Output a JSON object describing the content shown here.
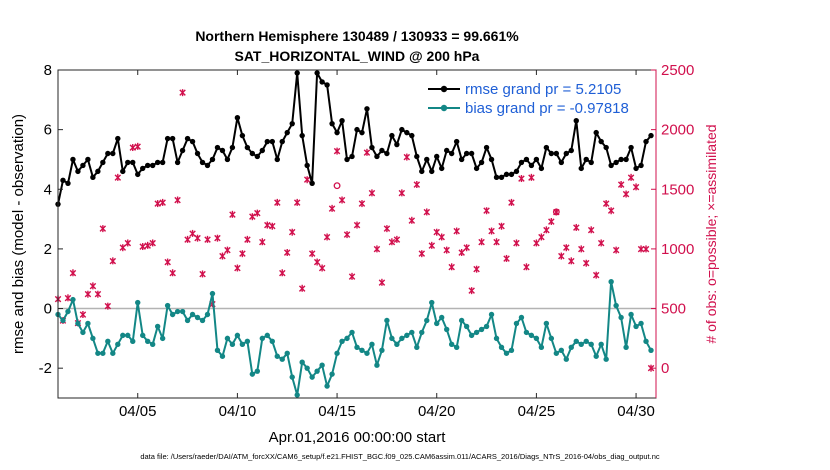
{
  "chart_data": {
    "type": "line",
    "title": "Northern Hemisphere 130489 / 130933 = 99.661%",
    "subtitle": "SAT_HORIZONTAL_WIND @ 200 hPa",
    "xlabel": "Apr.01,2016 00:00:00 start",
    "ylabel": "rmse and bias (model - observation)",
    "y2label": "# of obs: o=possible; ×=assimilated",
    "xlim": [
      1,
      31
    ],
    "ylim": [
      -3,
      8
    ],
    "y2lim": [
      -250,
      2500
    ],
    "xticks": [
      {
        "value": 5,
        "label": "04/05"
      },
      {
        "value": 10,
        "label": "04/10"
      },
      {
        "value": 15,
        "label": "04/15"
      },
      {
        "value": 20,
        "label": "04/20"
      },
      {
        "value": 25,
        "label": "04/25"
      },
      {
        "value": 30,
        "label": "04/30"
      }
    ],
    "yticks": [
      -2,
      0,
      2,
      4,
      6,
      8
    ],
    "y2ticks": [
      0,
      500,
      1000,
      1500,
      2000,
      2500
    ],
    "zero_line": 0,
    "legend_position": "top-right",
    "colors": {
      "rmse": "#000000",
      "bias": "#138786",
      "obs": "#d1104d",
      "zero": "#b3b3b3"
    },
    "series": [
      {
        "name": "rmse grand pr = 5.2105",
        "axis": "left",
        "x": [
          1.0,
          1.25,
          1.5,
          1.75,
          2.0,
          2.25,
          2.5,
          2.75,
          3.0,
          3.25,
          3.5,
          3.75,
          4.0,
          4.25,
          4.5,
          4.75,
          5.0,
          5.25,
          5.5,
          5.75,
          6.0,
          6.25,
          6.5,
          6.75,
          7.0,
          7.25,
          7.5,
          7.75,
          8.0,
          8.25,
          8.5,
          8.75,
          9.0,
          9.25,
          9.5,
          9.75,
          10.0,
          10.25,
          10.5,
          10.75,
          11.0,
          11.25,
          11.5,
          11.75,
          12.0,
          12.25,
          12.5,
          12.75,
          13.0,
          13.25,
          13.5,
          13.75,
          14.0,
          14.25,
          14.5,
          14.75,
          15.0,
          15.25,
          15.5,
          15.75,
          16.0,
          16.25,
          16.5,
          16.75,
          17.0,
          17.25,
          17.5,
          17.75,
          18.0,
          18.25,
          18.5,
          18.75,
          19.0,
          19.25,
          19.5,
          19.75,
          20.0,
          20.25,
          20.5,
          20.75,
          21.0,
          21.25,
          21.5,
          21.75,
          22.0,
          22.25,
          22.5,
          22.75,
          23.0,
          23.25,
          23.5,
          23.75,
          24.0,
          24.25,
          24.5,
          24.75,
          25.0,
          25.25,
          25.5,
          25.75,
          26.0,
          26.25,
          26.5,
          26.75,
          27.0,
          27.25,
          27.5,
          27.75,
          28.0,
          28.25,
          28.5,
          28.75,
          29.0,
          29.25,
          29.5,
          29.75,
          30.0,
          30.25,
          30.5,
          30.75
        ],
        "values": [
          3.5,
          4.3,
          4.2,
          5.0,
          4.6,
          4.8,
          5.0,
          4.4,
          4.6,
          4.9,
          5.2,
          5.2,
          5.7,
          4.6,
          4.9,
          4.9,
          4.5,
          4.7,
          4.8,
          4.8,
          4.9,
          4.9,
          5.7,
          5.7,
          4.9,
          5.3,
          5.7,
          5.6,
          5.2,
          4.9,
          4.8,
          5.0,
          5.4,
          5.3,
          5.0,
          5.4,
          6.4,
          5.8,
          5.4,
          5.2,
          5.1,
          5.3,
          5.6,
          5.6,
          5.0,
          5.6,
          5.9,
          6.2,
          7.9,
          5.8,
          4.8,
          4.2,
          7.9,
          7.6,
          7.5,
          6.2,
          5.9,
          6.3,
          5.0,
          5.1,
          6.0,
          5.9,
          6.7,
          5.4,
          5.1,
          5.3,
          5.2,
          5.8,
          5.5,
          6.0,
          5.9,
          5.8,
          5.1,
          4.6,
          5.0,
          4.6,
          5.1,
          4.7,
          5.3,
          5.2,
          5.6,
          5.0,
          5.2,
          5.2,
          4.7,
          4.9,
          5.4,
          5.0,
          4.4,
          4.4,
          4.5,
          4.5,
          4.6,
          4.9,
          5.0,
          4.8,
          5.0,
          4.7,
          5.4,
          5.2,
          5.2,
          4.9,
          5.2,
          5.3,
          6.3,
          4.7,
          5.0,
          4.9,
          5.9,
          5.6,
          5.4,
          4.8,
          4.9,
          5.0,
          5.0,
          5.4,
          4.7,
          4.8,
          5.6,
          5.8
        ]
      },
      {
        "name": "bias grand pr = -0.97818",
        "axis": "left",
        "x": [
          1.0,
          1.25,
          1.5,
          1.75,
          2.0,
          2.25,
          2.5,
          2.75,
          3.0,
          3.25,
          3.5,
          3.75,
          4.0,
          4.25,
          4.5,
          4.75,
          5.0,
          5.25,
          5.5,
          5.75,
          6.0,
          6.25,
          6.5,
          6.75,
          7.0,
          7.25,
          7.5,
          7.75,
          8.0,
          8.25,
          8.5,
          8.75,
          9.0,
          9.25,
          9.5,
          9.75,
          10.0,
          10.25,
          10.5,
          10.75,
          11.0,
          11.25,
          11.5,
          11.75,
          12.0,
          12.25,
          12.5,
          12.75,
          13.0,
          13.25,
          13.5,
          13.75,
          14.0,
          14.25,
          14.5,
          14.75,
          15.0,
          15.25,
          15.5,
          15.75,
          16.0,
          16.25,
          16.5,
          16.75,
          17.0,
          17.25,
          17.5,
          17.75,
          18.0,
          18.25,
          18.5,
          18.75,
          19.0,
          19.25,
          19.5,
          19.75,
          20.0,
          20.25,
          20.5,
          20.75,
          21.0,
          21.25,
          21.5,
          21.75,
          22.0,
          22.25,
          22.5,
          22.75,
          23.0,
          23.25,
          23.5,
          23.75,
          24.0,
          24.25,
          24.5,
          24.75,
          25.0,
          25.25,
          25.5,
          25.75,
          26.0,
          26.25,
          26.5,
          26.75,
          27.0,
          27.25,
          27.5,
          27.75,
          28.0,
          28.25,
          28.5,
          28.75,
          29.0,
          29.25,
          29.5,
          29.75,
          30.0,
          30.25,
          30.5,
          30.75
        ],
        "values": [
          -0.2,
          -0.4,
          -0.1,
          0.3,
          -0.5,
          -0.8,
          -0.5,
          -1.0,
          -1.5,
          -1.5,
          -1.1,
          -1.5,
          -1.2,
          -0.9,
          -0.9,
          -1.1,
          0.2,
          -0.9,
          -1.1,
          -1.2,
          -0.6,
          -1.0,
          0.1,
          -0.2,
          -0.1,
          -0.1,
          -0.4,
          -0.2,
          -0.3,
          -0.4,
          -0.2,
          0.5,
          -1.4,
          -1.6,
          -1.0,
          -1.2,
          -0.9,
          -1.2,
          -1.1,
          -2.2,
          -2.1,
          -1.0,
          -0.9,
          -1.1,
          -1.6,
          -1.7,
          -1.5,
          -2.3,
          -2.9,
          -1.8,
          -2.0,
          -2.3,
          -2.1,
          -1.9,
          -2.6,
          -2.2,
          -1.5,
          -1.1,
          -1.0,
          -0.8,
          -1.3,
          -1.4,
          -1.5,
          -1.2,
          -1.9,
          -1.4,
          -0.4,
          -1.0,
          -1.2,
          -1.0,
          -0.9,
          -0.8,
          -1.3,
          -0.8,
          -0.4,
          0.2,
          -0.5,
          -0.3,
          -0.7,
          -1.2,
          -1.3,
          -0.4,
          -0.6,
          -0.9,
          -0.8,
          -0.7,
          -0.6,
          -0.2,
          -1.0,
          -1.3,
          -1.5,
          -1.4,
          -0.5,
          -0.3,
          -0.8,
          -0.9,
          -1.0,
          -1.3,
          -0.5,
          -1.0,
          -1.5,
          -1.4,
          -1.7,
          -1.3,
          -1.1,
          -1.2,
          -1.1,
          -1.2,
          -1.6,
          -1.2,
          -1.7,
          0.9,
          0.1,
          -0.3,
          -1.3,
          -0.2,
          -0.6,
          -0.5,
          -1.1,
          -1.4
        ]
      },
      {
        "name": "# of obs assimilated",
        "axis": "right",
        "marker": "×",
        "x": [
          1.0,
          1.25,
          1.5,
          1.75,
          2.0,
          2.25,
          2.5,
          2.75,
          3.0,
          3.25,
          3.5,
          3.75,
          4.0,
          4.25,
          4.5,
          4.75,
          5.0,
          5.25,
          5.5,
          5.75,
          6.0,
          6.25,
          6.5,
          6.75,
          7.0,
          7.25,
          7.5,
          7.75,
          8.0,
          8.25,
          8.5,
          8.75,
          9.0,
          9.25,
          9.5,
          9.75,
          10.0,
          10.25,
          10.5,
          10.75,
          11.0,
          11.25,
          11.5,
          11.75,
          12.0,
          12.25,
          12.5,
          12.75,
          13.0,
          13.25,
          13.5,
          13.75,
          14.0,
          14.25,
          14.5,
          14.75,
          15.0,
          15.25,
          15.5,
          15.75,
          16.0,
          16.25,
          16.5,
          16.75,
          17.0,
          17.25,
          17.5,
          17.75,
          18.0,
          18.25,
          18.5,
          18.75,
          19.0,
          19.25,
          19.5,
          19.75,
          20.0,
          20.25,
          20.5,
          20.75,
          21.0,
          21.25,
          21.5,
          21.75,
          22.0,
          22.25,
          22.5,
          22.75,
          23.0,
          23.25,
          23.5,
          23.75,
          24.0,
          24.25,
          24.5,
          24.75,
          25.0,
          25.25,
          25.5,
          25.75,
          26.0,
          26.25,
          26.5,
          26.75,
          27.0,
          27.25,
          27.5,
          27.75,
          28.0,
          28.25,
          28.5,
          28.75,
          29.0,
          29.25,
          29.5,
          29.75,
          30.0,
          30.25,
          30.5,
          30.75
        ],
        "values": [
          580,
          400,
          590,
          800,
          380,
          450,
          620,
          690,
          620,
          1170,
          520,
          900,
          1600,
          1010,
          1050,
          1850,
          1860,
          1020,
          1030,
          1050,
          1380,
          1390,
          890,
          800,
          1410,
          2310,
          1080,
          1130,
          1090,
          790,
          1080,
          540,
          1090,
          940,
          990,
          1290,
          840,
          960,
          1080,
          1270,
          1300,
          1060,
          1200,
          1190,
          1390,
          800,
          970,
          1140,
          1390,
          670,
          1580,
          960,
          890,
          840,
          1100,
          1340,
          1820,
          1410,
          1120,
          770,
          1200,
          1380,
          1810,
          1470,
          1000,
          720,
          1170,
          1060,
          1080,
          1470,
          1770,
          1240,
          1540,
          960,
          1310,
          1030,
          1140,
          1100,
          990,
          850,
          1150,
          970,
          1010,
          650,
          830,
          1060,
          1320,
          1150,
          1060,
          1190,
          920,
          1390,
          1050,
          1590,
          850,
          1600,
          1050,
          1100,
          1160,
          1230,
          1310,
          940,
          1010,
          900,
          1180,
          1000,
          880,
          1160,
          780,
          1050,
          1380,
          1320,
          990,
          1540,
          1460,
          1600,
          1520,
          1000,
          1000,
          0
        ]
      },
      {
        "name": "# of obs possible",
        "axis": "right",
        "marker": "o",
        "x": [
          15.0,
          26.0
        ],
        "values": [
          1530,
          1310
        ]
      }
    ]
  },
  "footer": "data file: /Users/raeder/DAI/ATM_forcXX/CAM6_setup/f.e21.FHIST_BGC.f09_025.CAM6assim.011/ACARS_2016/Diags_NTrS_2016-04/obs_diag_output.nc"
}
